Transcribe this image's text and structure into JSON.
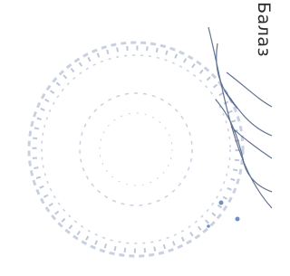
{
  "document": {
    "edge_text": "Балаз"
  }
}
